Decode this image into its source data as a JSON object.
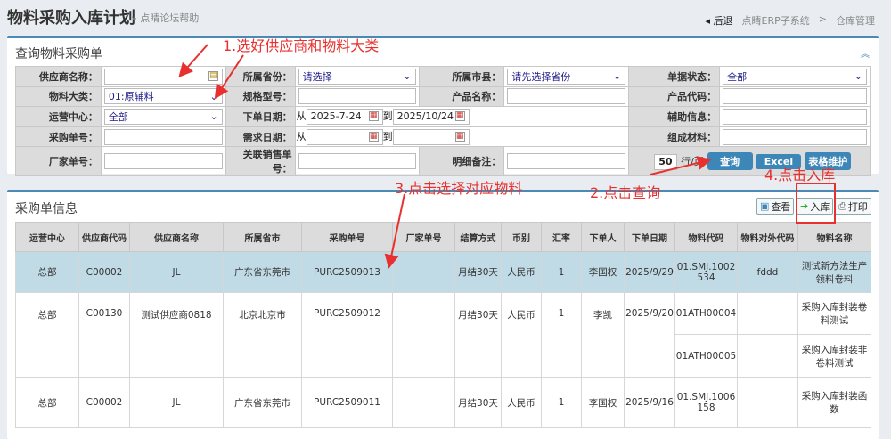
{
  "header": {
    "title": "物料采购入库计划",
    "help_link": "» 点睛论坛帮助",
    "back": "◂ 后退",
    "breadcrumb": [
      "点睛ERP子系统",
      ">",
      "仓库管理"
    ]
  },
  "query": {
    "title": "查询物料采购单",
    "collapse_icon": "double-chevron-up",
    "fields": {
      "supplier_name": {
        "label": "供应商名称：",
        "value": ""
      },
      "province": {
        "label": "所属省份：",
        "value": "请选择"
      },
      "city": {
        "label": "所属市县：",
        "value": "请先选择省份"
      },
      "status": {
        "label": "单据状态：",
        "value": "全部"
      },
      "material_category": {
        "label": "物料大类：",
        "value": "01:原辅料"
      },
      "spec": {
        "label": "规格型号：",
        "value": ""
      },
      "product_name": {
        "label": "产品名称：",
        "value": ""
      },
      "product_code": {
        "label": "产品代码：",
        "value": ""
      },
      "ops_center": {
        "label": "运营中心：",
        "value": "全部"
      },
      "order_date": {
        "label": "下单日期：",
        "from": "从",
        "from_value": "2025-7-24",
        "to": "到",
        "to_value": "2025/10/24"
      },
      "aux_info": {
        "label": "辅助信息：",
        "value": ""
      },
      "po_number": {
        "label": "采购单号：",
        "value": ""
      },
      "need_date": {
        "label": "需求日期：",
        "from": "从",
        "from_value": "",
        "to": "到",
        "to_value": ""
      },
      "composition": {
        "label": "组成材料：",
        "value": ""
      },
      "factory_no": {
        "label": "厂家单号：",
        "value": ""
      },
      "sales_no": {
        "label": "关联销售单号：",
        "value": ""
      },
      "detail_note": {
        "label": "明细备注：",
        "value": ""
      }
    },
    "rows_per_page": "50",
    "rows_per_page_unit": "行/页",
    "buttons": {
      "query": "查询",
      "excel": "Excel",
      "table_maintain": "表格维护"
    }
  },
  "results": {
    "title": "采购单信息",
    "buttons": {
      "view": "查看",
      "stock_in": "入库",
      "print": "打印"
    },
    "columns": [
      "运营中心",
      "供应商代码",
      "供应商名称",
      "所属省市",
      "采购单号",
      "厂家单号",
      "结算方式",
      "币别",
      "汇率",
      "下单人",
      "下单日期",
      "物料代码",
      "物料对外代码",
      "物料名称"
    ],
    "rows": [
      {
        "center": "总部",
        "supplier_code": "C00002",
        "supplier_name": "JL",
        "city": "广东省东莞市",
        "po": "PURC2509013",
        "factory_no": "",
        "settle": "月结30天",
        "currency": "人民币",
        "rate": "1",
        "orderer": "李国权",
        "date": "2025/9/29",
        "items": [
          {
            "code": "01.SMJ.1002534",
            "ext_code": "fddd",
            "name": "测试新方法生产领料卷料"
          }
        ]
      },
      {
        "center": "总部",
        "supplier_code": "C00130",
        "supplier_name": "测试供应商0818",
        "city": "北京北京市",
        "po": "PURC2509012",
        "factory_no": "",
        "settle": "月结30天",
        "currency": "人民币",
        "rate": "1",
        "orderer": "李凯",
        "date": "2025/9/20",
        "items": [
          {
            "code": "01ATH00004",
            "ext_code": "",
            "name": "采购入库封装卷料测试"
          },
          {
            "code": "01ATH00005",
            "ext_code": "",
            "name": "采购入库封装非卷料测试"
          }
        ]
      },
      {
        "center": "总部",
        "supplier_code": "C00002",
        "supplier_name": "JL",
        "city": "广东省东莞市",
        "po": "PURC2509011",
        "factory_no": "",
        "settle": "月结30天",
        "currency": "人民币",
        "rate": "1",
        "orderer": "李国权",
        "date": "2025/9/16",
        "items": [
          {
            "code": "01.SMJ.1006158",
            "ext_code": "",
            "name": "采购入库封装函数"
          }
        ]
      }
    ]
  },
  "annotations": {
    "step1": "1.选好供应商和物料大类",
    "step2": "2.点击查询",
    "step3": "3.点击选择对应物料",
    "step4": "4.点击入库"
  },
  "colors": {
    "accent": "#3d86b8",
    "selected_row": "#c1dbe6",
    "annotation": "#e8312f"
  }
}
